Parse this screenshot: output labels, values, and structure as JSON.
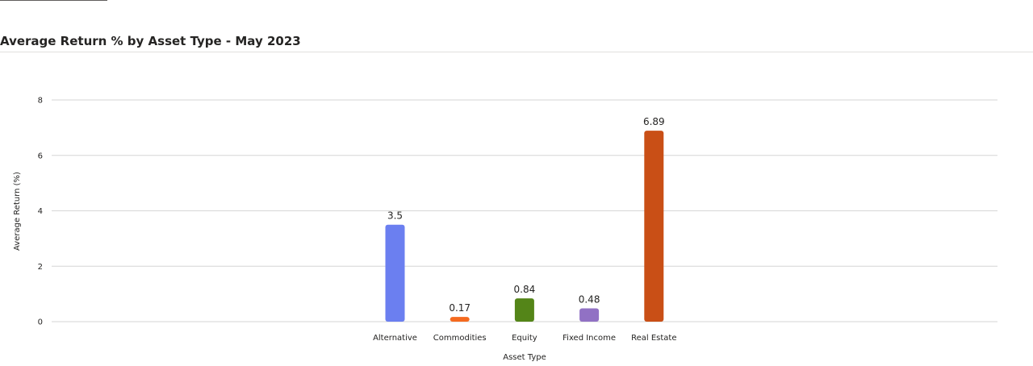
{
  "page": {
    "title": "Average Return % by Asset Type - May 2023"
  },
  "chart_data": {
    "type": "bar",
    "title": "Average Return % by Asset Type - May 2023",
    "xlabel": "Asset Type",
    "ylabel": "Average Return (%)",
    "ylim": [
      0,
      8
    ],
    "yticks": [
      0,
      2,
      4,
      6,
      8
    ],
    "grid": true,
    "categories": [
      "Alternative",
      "Commodities",
      "Equity",
      "Fixed Income",
      "Real Estate"
    ],
    "values": [
      3.5,
      0.17,
      0.84,
      0.48,
      6.89
    ],
    "data_labels": [
      "3.5",
      "0.17",
      "0.84",
      "0.48",
      "6.89"
    ],
    "colors": [
      "#6b7ff0",
      "#f56a1f",
      "#548518",
      "#9171c4",
      "#c94f16"
    ]
  }
}
